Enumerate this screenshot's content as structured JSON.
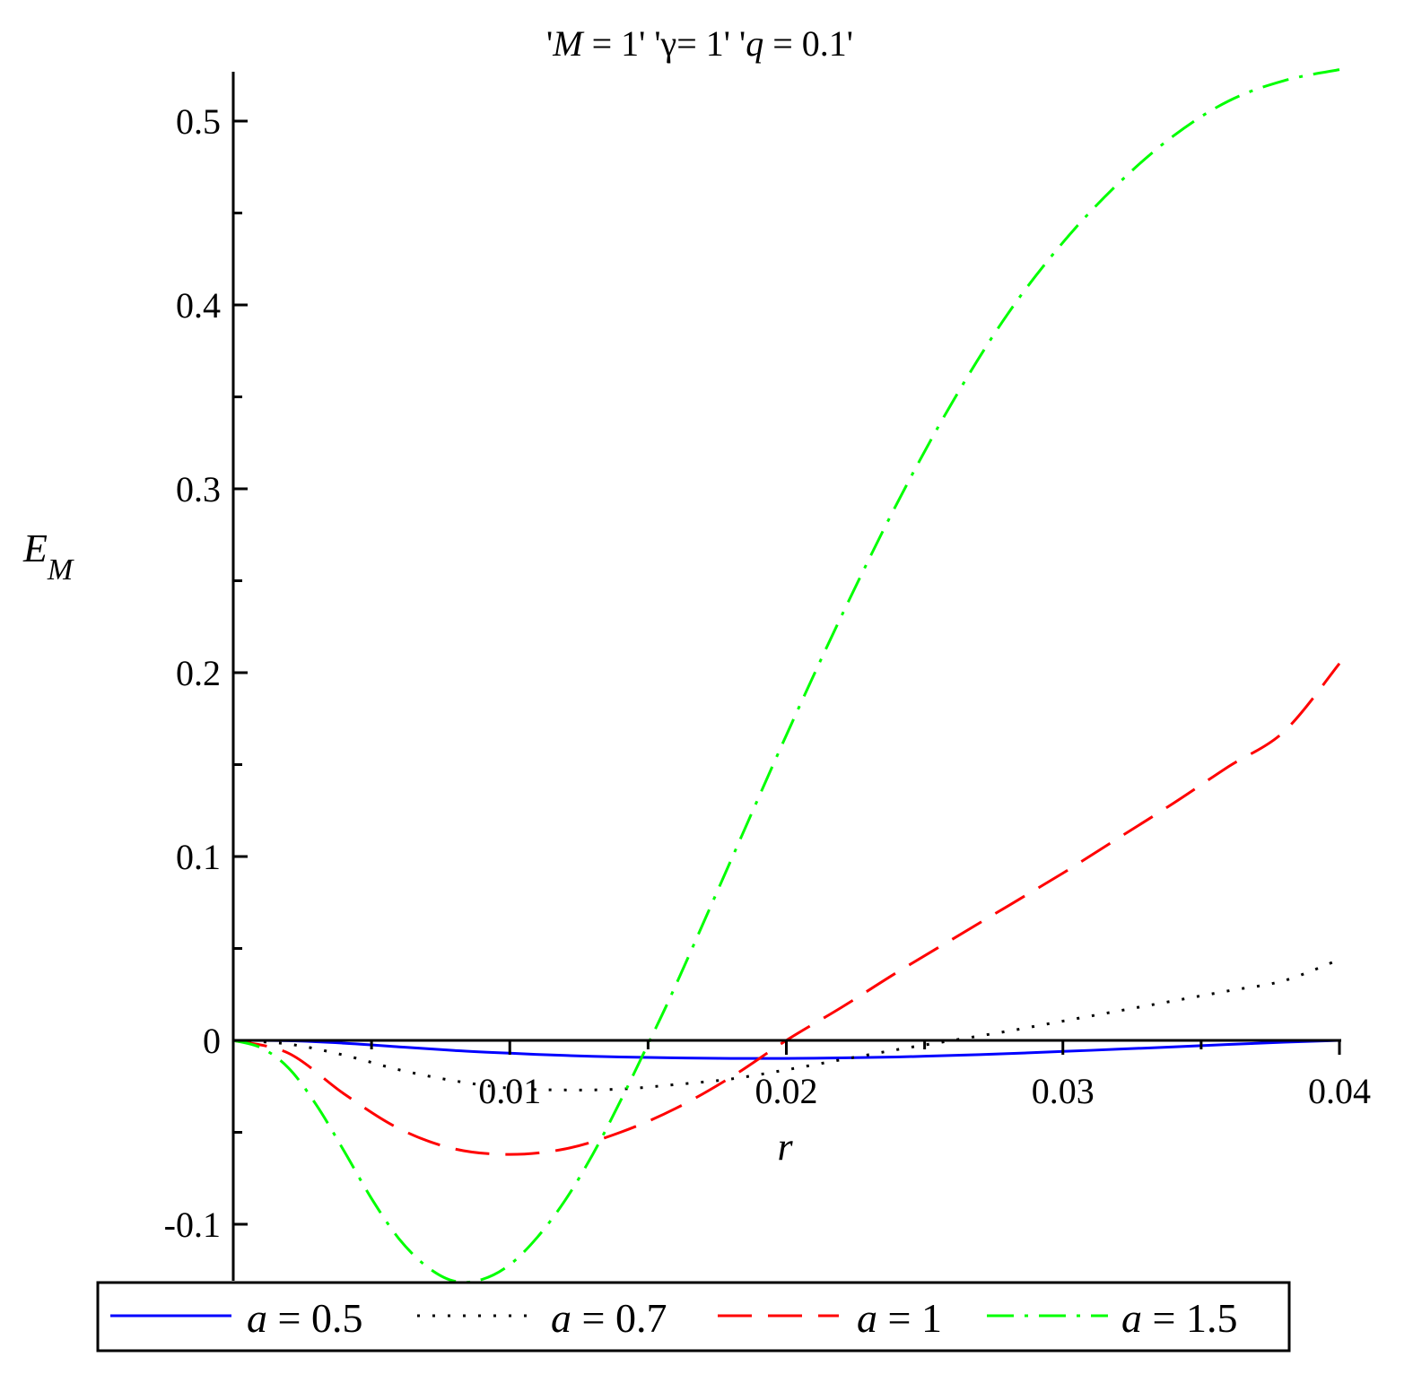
{
  "chart_data": {
    "type": "line",
    "title": "'M = 1' 'γ = 1' 'q = 0.1'",
    "title_parts": [
      {
        "text": "'",
        "italic": false
      },
      {
        "text": "M",
        "italic": true
      },
      {
        "text": " = 1' '",
        "italic": false
      },
      {
        "text": "γ",
        "italic": false
      },
      {
        "text": "= 1' '",
        "italic": false
      },
      {
        "text": "q",
        "italic": true
      },
      {
        "text": " = 0.1'",
        "italic": false
      }
    ],
    "xlabel": "r",
    "ylabel": "E",
    "ylabel_sub": "M",
    "xlim": [
      0,
      0.04
    ],
    "ylim": [
      -0.13,
      0.53
    ],
    "x_ticks": [
      "0.01",
      "0.02",
      "0.03",
      "0.04"
    ],
    "x_tick_values": [
      0.01,
      0.02,
      0.03,
      0.04
    ],
    "x_minor_ticks": [
      0.005,
      0.015,
      0.025,
      0.035
    ],
    "y_ticks": [
      "-0.1",
      "0",
      "0.1",
      "0.2",
      "0.3",
      "0.4",
      "0.5"
    ],
    "y_tick_values": [
      -0.1,
      0,
      0.1,
      0.2,
      0.3,
      0.4,
      0.5
    ],
    "y_minor_ticks": [
      -0.05,
      0.05,
      0.15,
      0.25,
      0.35,
      0.45
    ],
    "grid": false,
    "legend_placement": "bottom",
    "series": [
      {
        "name": "a = 0.5",
        "symbol": "a",
        "value_label": " = 0.5",
        "color": "#0000ff",
        "dash": "solid",
        "x": [
          0.0,
          0.002,
          0.004,
          0.006,
          0.008,
          0.01,
          0.012,
          0.014,
          0.016,
          0.018,
          0.02,
          0.022,
          0.024,
          0.026,
          0.028,
          0.03,
          0.032,
          0.034,
          0.036,
          0.038,
          0.04
        ],
        "y": [
          0.0,
          -0.0002,
          -0.0015,
          -0.0035,
          -0.0055,
          -0.007,
          -0.0082,
          -0.009,
          -0.0095,
          -0.0098,
          -0.0098,
          -0.0095,
          -0.009,
          -0.0082,
          -0.0072,
          -0.006,
          -0.0048,
          -0.0035,
          -0.0022,
          -0.001,
          0.0
        ]
      },
      {
        "name": "a = 0.7",
        "symbol": "a",
        "value_label": " = 0.7",
        "color": "#000000",
        "dash": "dotted",
        "x": [
          0.0,
          0.002,
          0.004,
          0.006,
          0.008,
          0.01,
          0.012,
          0.014,
          0.016,
          0.018,
          0.02,
          0.022,
          0.024,
          0.026,
          0.028,
          0.03,
          0.032,
          0.034,
          0.036,
          0.038,
          0.04
        ],
        "y": [
          0.0,
          -0.002,
          -0.008,
          -0.016,
          -0.022,
          -0.026,
          -0.027,
          -0.0265,
          -0.024,
          -0.021,
          -0.016,
          -0.0105,
          -0.005,
          0.0,
          0.005,
          0.0105,
          0.016,
          0.0215,
          0.027,
          0.0325,
          0.044
        ]
      },
      {
        "name": "a = 1",
        "symbol": "a",
        "value_label": " = 1",
        "color": "#ff0000",
        "dash": "dashed",
        "x": [
          0.0,
          0.002,
          0.004,
          0.006,
          0.008,
          0.01,
          0.012,
          0.014,
          0.016,
          0.018,
          0.02,
          0.022,
          0.024,
          0.026,
          0.028,
          0.03,
          0.032,
          0.034,
          0.036,
          0.038,
          0.04
        ],
        "y": [
          0.0,
          -0.007,
          -0.029,
          -0.048,
          -0.059,
          -0.062,
          -0.059,
          -0.05,
          -0.037,
          -0.02,
          0.0,
          0.018,
          0.037,
          0.055,
          0.073,
          0.091,
          0.11,
          0.129,
          0.149,
          0.168,
          0.205
        ]
      },
      {
        "name": "a = 1.5",
        "symbol": "a",
        "value_label": " = 1.5",
        "color": "#00ff00",
        "dash": "dashdot",
        "x": [
          0.0,
          0.001,
          0.002,
          0.003,
          0.004,
          0.005,
          0.006,
          0.007,
          0.008,
          0.009,
          0.01,
          0.011,
          0.012,
          0.013,
          0.014,
          0.015,
          0.016,
          0.018,
          0.02,
          0.022,
          0.024,
          0.026,
          0.028,
          0.03,
          0.032,
          0.034,
          0.036,
          0.038,
          0.04
        ],
        "y": [
          0.0,
          -0.004,
          -0.015,
          -0.035,
          -0.06,
          -0.086,
          -0.108,
          -0.123,
          -0.131,
          -0.13,
          -0.122,
          -0.107,
          -0.087,
          -0.062,
          -0.033,
          -0.002,
          0.03,
          0.098,
          0.166,
          0.231,
          0.292,
          0.347,
          0.395,
          0.434,
          0.466,
          0.492,
          0.511,
          0.522,
          0.528
        ]
      }
    ]
  }
}
